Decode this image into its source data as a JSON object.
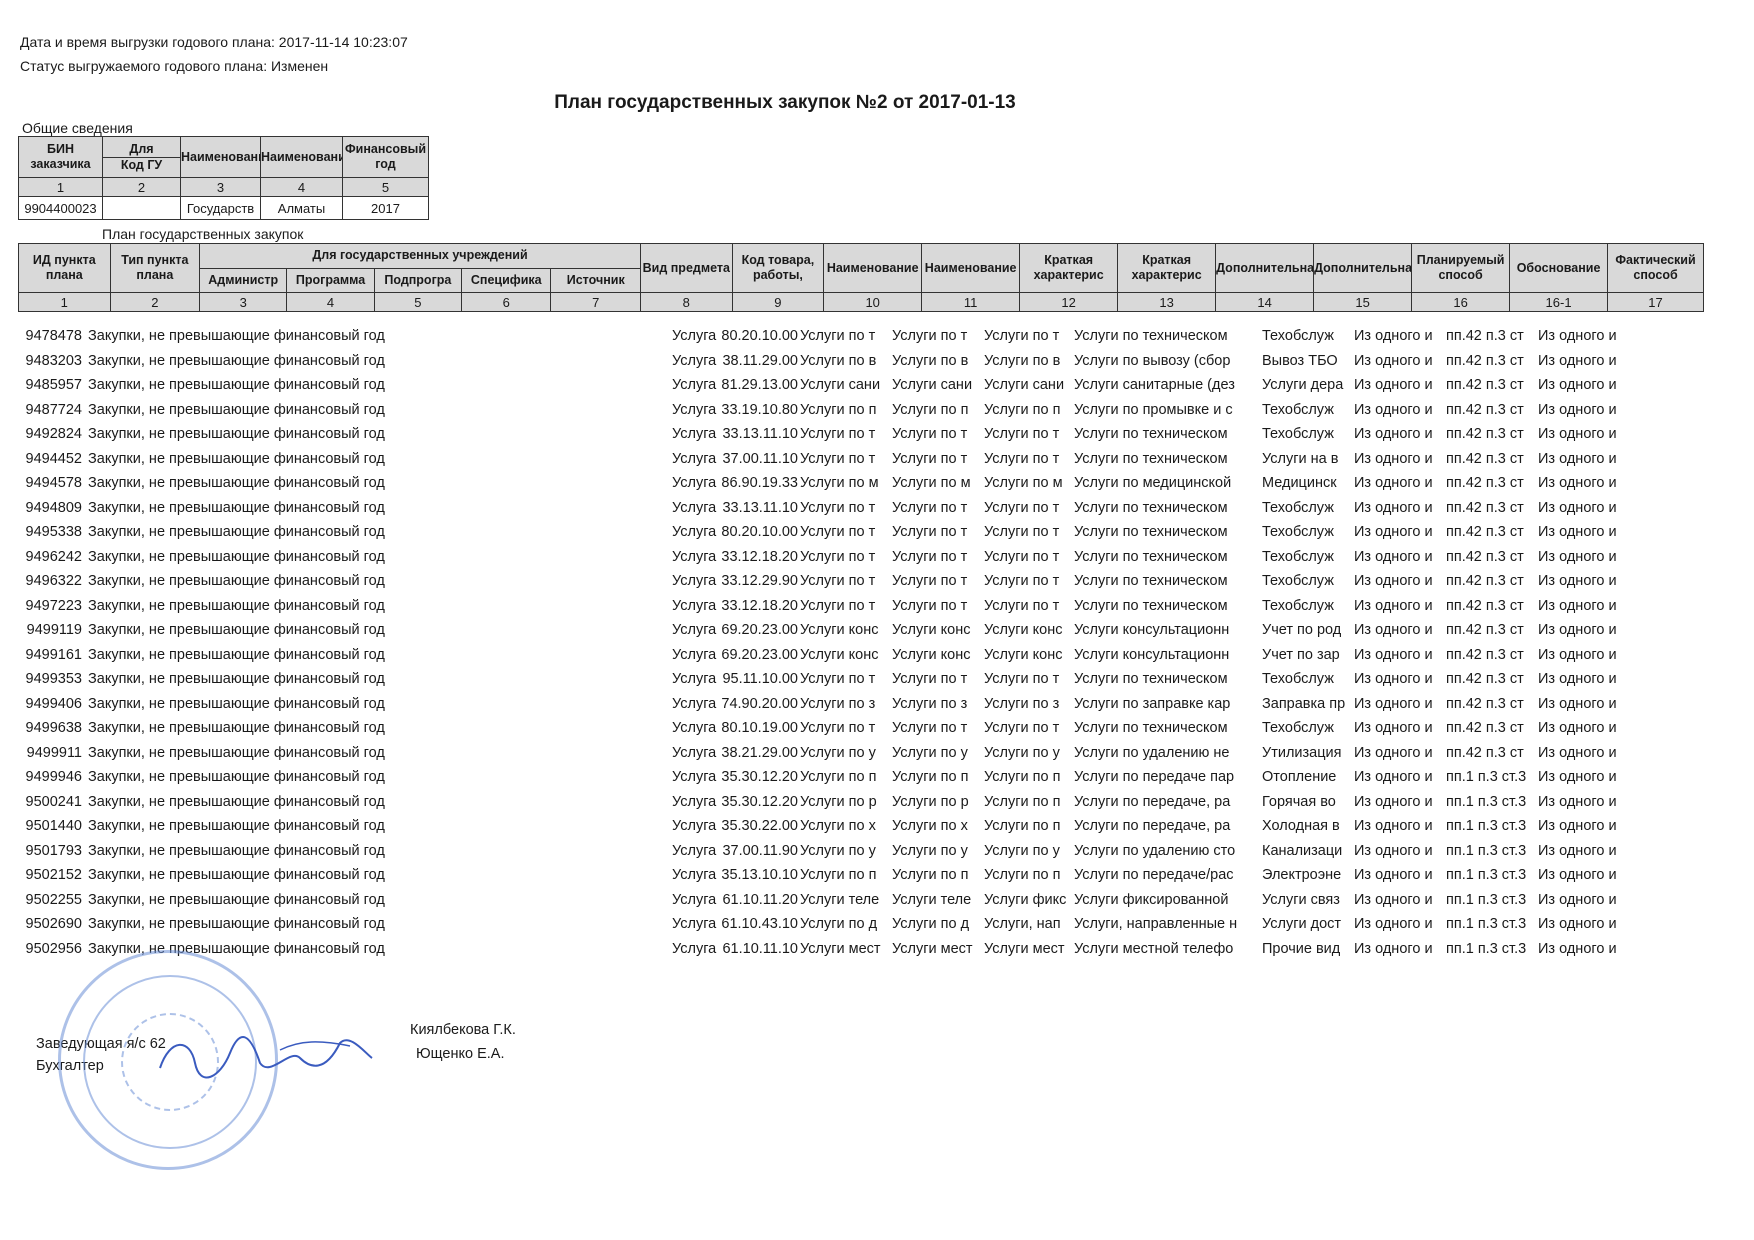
{
  "header": {
    "export_datetime": "Дата и время выгрузки годового плана: 2017-11-14 10:23:07",
    "plan_status": "Статус выгружаемого годового плана: Изменен",
    "title": "План государственных закупок №2 от 2017-01-13"
  },
  "general": {
    "section_label": "Общие сведения",
    "headers": [
      "БИН заказчика",
      "Для",
      "Наименование",
      "Наименование",
      "Финансовый год"
    ],
    "subheader_code": "Код ГУ",
    "numbers": [
      "1",
      "2",
      "3",
      "4",
      "5"
    ],
    "values": [
      "9904400023",
      "",
      "Государств",
      "Алматы",
      "2017"
    ]
  },
  "plan": {
    "section_label": "План государственных закупок",
    "group_header": "Для государственных учреждений",
    "headers": [
      "ИД пункта плана",
      "Тип пункта плана",
      "Администр",
      "Программа",
      "Подпрогра",
      "Специфика",
      "Источник",
      "Вид предмета",
      "Код товара, работы,",
      "Наименование",
      "Наименование",
      "Краткая характерис",
      "Краткая характерис",
      "Дополнительная",
      "Дополнительная",
      "Планируемый способ",
      "Обоснование",
      "Фактический способ"
    ],
    "numbers": [
      "1",
      "2",
      "3",
      "4",
      "5",
      "6",
      "7",
      "8",
      "9",
      "10",
      "11",
      "12",
      "13",
      "14",
      "15",
      "16",
      "16-1",
      "17"
    ],
    "rows": [
      {
        "id": "9478478",
        "type": "Закупки, не превышающие финансовый год",
        "subject": "Услуга",
        "code": "80.20.10.00",
        "c10": "Услуги по т",
        "c11": "Услуги по т",
        "c12": "Услуги по т",
        "c13": "Услуги по техническом",
        "c14": "Техобслуж",
        "c15": "Из одного и",
        "c16": "пп.42 п.3 ст",
        "c17": "Из одного и"
      },
      {
        "id": "9483203",
        "type": "Закупки, не превышающие финансовый год",
        "subject": "Услуга",
        "code": "38.11.29.00",
        "c10": "Услуги по в",
        "c11": "Услуги по в",
        "c12": "Услуги по в",
        "c13": "Услуги по вывозу (сбор",
        "c14": "Вывоз ТБО",
        "c15": "Из одного и",
        "c16": "пп.42 п.3 ст",
        "c17": "Из одного и"
      },
      {
        "id": "9485957",
        "type": "Закупки, не превышающие финансовый год",
        "subject": "Услуга",
        "code": "81.29.13.00",
        "c10": "Услуги сани",
        "c11": "Услуги сани",
        "c12": "Услуги сани",
        "c13": "Услуги санитарные (дез",
        "c14": "Услуги дера",
        "c15": "Из одного и",
        "c16": "пп.42 п.3 ст",
        "c17": "Из одного и"
      },
      {
        "id": "9487724",
        "type": "Закупки, не превышающие финансовый год",
        "subject": "Услуга",
        "code": "33.19.10.80",
        "c10": "Услуги по п",
        "c11": "Услуги по п",
        "c12": "Услуги по п",
        "c13": "Услуги по промывке и с",
        "c14": "Техобслуж",
        "c15": "Из одного и",
        "c16": "пп.42 п.3 ст",
        "c17": "Из одного и"
      },
      {
        "id": "9492824",
        "type": "Закупки, не превышающие финансовый год",
        "subject": "Услуга",
        "code": "33.13.11.10",
        "c10": "Услуги по т",
        "c11": "Услуги по т",
        "c12": "Услуги по т",
        "c13": "Услуги по техническом",
        "c14": "Техобслуж",
        "c15": "Из одного и",
        "c16": "пп.42 п.3 ст",
        "c17": "Из одного и"
      },
      {
        "id": "9494452",
        "type": "Закупки, не превышающие финансовый год",
        "subject": "Услуга",
        "code": "37.00.11.10",
        "c10": "Услуги по т",
        "c11": "Услуги по т",
        "c12": "Услуги по т",
        "c13": "Услуги по техническом",
        "c14": "Услуги на в",
        "c15": "Из одного и",
        "c16": "пп.42 п.3 ст",
        "c17": "Из одного и"
      },
      {
        "id": "9494578",
        "type": "Закупки, не превышающие финансовый год",
        "subject": "Услуга",
        "code": "86.90.19.33",
        "c10": "Услуги по м",
        "c11": "Услуги по м",
        "c12": "Услуги по м",
        "c13": "Услуги по медицинской",
        "c14": "Медицинск",
        "c15": "Из одного и",
        "c16": "пп.42 п.3 ст",
        "c17": "Из одного и"
      },
      {
        "id": "9494809",
        "type": "Закупки, не превышающие финансовый год",
        "subject": "Услуга",
        "code": "33.13.11.10",
        "c10": "Услуги по т",
        "c11": "Услуги по т",
        "c12": "Услуги по т",
        "c13": "Услуги по техническом",
        "c14": "Техобслуж",
        "c15": "Из одного и",
        "c16": "пп.42 п.3 ст",
        "c17": "Из одного и"
      },
      {
        "id": "9495338",
        "type": "Закупки, не превышающие финансовый год",
        "subject": "Услуга",
        "code": "80.20.10.00",
        "c10": "Услуги по т",
        "c11": "Услуги по т",
        "c12": "Услуги по т",
        "c13": "Услуги по техническом",
        "c14": "Техобслуж",
        "c15": "Из одного и",
        "c16": "пп.42 п.3 ст",
        "c17": "Из одного и"
      },
      {
        "id": "9496242",
        "type": "Закупки, не превышающие финансовый год",
        "subject": "Услуга",
        "code": "33.12.18.20",
        "c10": "Услуги по т",
        "c11": "Услуги по т",
        "c12": "Услуги по т",
        "c13": "Услуги по техническом",
        "c14": "Техобслуж",
        "c15": "Из одного и",
        "c16": "пп.42 п.3 ст",
        "c17": "Из одного и"
      },
      {
        "id": "9496322",
        "type": "Закупки, не превышающие финансовый год",
        "subject": "Услуга",
        "code": "33.12.29.90",
        "c10": "Услуги по т",
        "c11": "Услуги по т",
        "c12": "Услуги по т",
        "c13": "Услуги по техническом",
        "c14": "Техобслуж",
        "c15": "Из одного и",
        "c16": "пп.42 п.3 ст",
        "c17": "Из одного и"
      },
      {
        "id": "9497223",
        "type": "Закупки, не превышающие финансовый год",
        "subject": "Услуга",
        "code": "33.12.18.20",
        "c10": "Услуги по т",
        "c11": "Услуги по т",
        "c12": "Услуги по т",
        "c13": "Услуги по техническом",
        "c14": "Техобслуж",
        "c15": "Из одного и",
        "c16": "пп.42 п.3 ст",
        "c17": "Из одного и"
      },
      {
        "id": "9499119",
        "type": "Закупки, не превышающие финансовый год",
        "subject": "Услуга",
        "code": "69.20.23.00",
        "c10": "Услуги конс",
        "c11": "Услуги конс",
        "c12": "Услуги конс",
        "c13": "Услуги консультационн",
        "c14": "Учет по род",
        "c15": "Из одного и",
        "c16": "пп.42 п.3 ст",
        "c17": "Из одного и"
      },
      {
        "id": "9499161",
        "type": "Закупки, не превышающие финансовый год",
        "subject": "Услуга",
        "code": "69.20.23.00",
        "c10": "Услуги конс",
        "c11": "Услуги конс",
        "c12": "Услуги конс",
        "c13": "Услуги консультационн",
        "c14": "Учет по зар",
        "c15": "Из одного и",
        "c16": "пп.42 п.3 ст",
        "c17": "Из одного и"
      },
      {
        "id": "9499353",
        "type": "Закупки, не превышающие финансовый год",
        "subject": "Услуга",
        "code": "95.11.10.00",
        "c10": "Услуги по т",
        "c11": "Услуги по т",
        "c12": "Услуги по т",
        "c13": "Услуги по техническом",
        "c14": "Техобслуж",
        "c15": "Из одного и",
        "c16": "пп.42 п.3 ст",
        "c17": "Из одного и"
      },
      {
        "id": "9499406",
        "type": "Закупки, не превышающие финансовый год",
        "subject": "Услуга",
        "code": "74.90.20.00",
        "c10": "Услуги по з",
        "c11": "Услуги по з",
        "c12": "Услуги по з",
        "c13": "Услуги по заправке кар",
        "c14": "Заправка пр",
        "c15": "Из одного и",
        "c16": "пп.42 п.3 ст",
        "c17": "Из одного и"
      },
      {
        "id": "9499638",
        "type": "Закупки, не превышающие финансовый год",
        "subject": "Услуга",
        "code": "80.10.19.00",
        "c10": "Услуги по т",
        "c11": "Услуги по т",
        "c12": "Услуги по т",
        "c13": "Услуги по техническом",
        "c14": "Техобслуж",
        "c15": "Из одного и",
        "c16": "пп.42 п.3 ст",
        "c17": "Из одного и"
      },
      {
        "id": "9499911",
        "type": "Закупки, не превышающие финансовый год",
        "subject": "Услуга",
        "code": "38.21.29.00",
        "c10": "Услуги по у",
        "c11": "Услуги по у",
        "c12": "Услуги по у",
        "c13": "Услуги по удалению не",
        "c14": "Утилизация",
        "c15": "Из одного и",
        "c16": "пп.42 п.3 ст",
        "c17": "Из одного и"
      },
      {
        "id": "9499946",
        "type": "Закупки, не превышающие финансовый год",
        "subject": "Услуга",
        "code": "35.30.12.20",
        "c10": "Услуги по п",
        "c11": "Услуги по п",
        "c12": "Услуги по п",
        "c13": "Услуги по передаче пар",
        "c14": "Отопление",
        "c15": "Из одного и",
        "c16": "пп.1 п.3 ст.3",
        "c17": "Из одного и"
      },
      {
        "id": "9500241",
        "type": "Закупки, не превышающие финансовый год",
        "subject": "Услуга",
        "code": "35.30.12.20",
        "c10": "Услуги по р",
        "c11": "Услуги по р",
        "c12": "Услуги по п",
        "c13": "Услуги по передаче, ра",
        "c14": "Горячая во",
        "c15": "Из одного и",
        "c16": "пп.1 п.3 ст.3",
        "c17": "Из одного и"
      },
      {
        "id": "9501440",
        "type": "Закупки, не превышающие финансовый год",
        "subject": "Услуга",
        "code": "35.30.22.00",
        "c10": "Услуги по х",
        "c11": "Услуги по х",
        "c12": "Услуги по п",
        "c13": "Услуги по передаче, ра",
        "c14": "Холодная в",
        "c15": "Из одного и",
        "c16": "пп.1 п.3 ст.3",
        "c17": "Из одного и"
      },
      {
        "id": "9501793",
        "type": "Закупки, не превышающие финансовый год",
        "subject": "Услуга",
        "code": "37.00.11.90",
        "c10": "Услуги по у",
        "c11": "Услуги по у",
        "c12": "Услуги по у",
        "c13": "Услуги по удалению сто",
        "c14": "Канализаци",
        "c15": "Из одного и",
        "c16": "пп.1 п.3 ст.3",
        "c17": "Из одного и"
      },
      {
        "id": "9502152",
        "type": "Закупки, не превышающие финансовый год",
        "subject": "Услуга",
        "code": "35.13.10.10",
        "c10": "Услуги по п",
        "c11": "Услуги по п",
        "c12": "Услуги по п",
        "c13": "Услуги по передаче/рас",
        "c14": "Электроэне",
        "c15": "Из одного и",
        "c16": "пп.1 п.3 ст.3",
        "c17": "Из одного и"
      },
      {
        "id": "9502255",
        "type": "Закупки, не превышающие финансовый год",
        "subject": "Услуга",
        "code": "61.10.11.20",
        "c10": "Услуги теле",
        "c11": "Услуги теле",
        "c12": "Услуги фикс",
        "c13": "Услуги фиксированной",
        "c14": "Услуги связ",
        "c15": "Из одного и",
        "c16": "пп.1 п.3 ст.3",
        "c17": "Из одного и"
      },
      {
        "id": "9502690",
        "type": "Закупки, не превышающие финансовый год",
        "subject": "Услуга",
        "code": "61.10.43.10",
        "c10": "Услуги по д",
        "c11": "Услуги по д",
        "c12": "Услуги, нап",
        "c13": "Услуги, направленные н",
        "c14": "Услуги дост",
        "c15": "Из одного и",
        "c16": "пп.1 п.3 ст.3",
        "c17": "Из одного и"
      },
      {
        "id": "9502956",
        "type": "Закупки, не превышающие финансовый год",
        "subject": "Услуга",
        "code": "61.10.11.10",
        "c10": "Услуги мест",
        "c11": "Услуги мест",
        "c12": "Услуги мест",
        "c13": "Услуги местной телефо",
        "c14": "Прочие вид",
        "c15": "Из одного и",
        "c16": "пп.1 п.3 ст.3",
        "c17": "Из одного и"
      }
    ]
  },
  "signatures": {
    "head_role": "Заведующая я/с 62",
    "head_name": "Киялбекова Г.К.",
    "accountant_role": "Бухгалтер",
    "accountant_name": "Ющенко Е.А."
  },
  "icons": {
    "stamp": "official-seal-icon",
    "signature": "handwritten-signature-icon"
  },
  "colors": {
    "header_fill": "#d9d9d9",
    "stamp": "#6b8fd6",
    "signature_ink": "#3a5bbf"
  }
}
